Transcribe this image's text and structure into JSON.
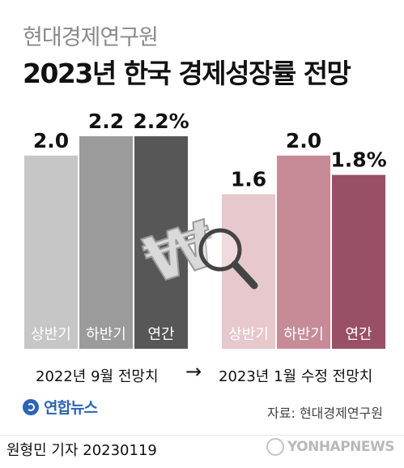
{
  "header": {
    "subtitle": "현대경제연구원",
    "title": "2023년 한국 경제성장률 전망"
  },
  "chart_data": {
    "type": "bar",
    "groups": [
      {
        "name": "2022년 9월 전망치",
        "categories": [
          "상반기",
          "하반기",
          "연간"
        ],
        "values": [
          2.0,
          2.2,
          2.2
        ],
        "value_labels": [
          "2.0",
          "2.2",
          "2.2%"
        ],
        "colors": [
          "#c6c6c6",
          "#9b9b9b",
          "#575757"
        ]
      },
      {
        "name": "2023년 1월 수정 전망치",
        "categories": [
          "상반기",
          "하반기",
          "연간"
        ],
        "values": [
          1.6,
          2.0,
          1.8
        ],
        "value_labels": [
          "1.6",
          "2.0",
          "1.8%"
        ],
        "colors": [
          "#e6c8cd",
          "#c78b98",
          "#9a5064"
        ]
      }
    ],
    "ylim": [
      0,
      2.2
    ],
    "grid": false,
    "legend": "none"
  },
  "footer": {
    "arrow": "→",
    "logo_text": "연합뉴스",
    "source": "자료: 현대경제연구원",
    "reporter": "원형민 기자  20230119",
    "watermark": "YONHAPNEWS"
  },
  "colors": {
    "label_white": "#ffffff",
    "magnifier": "#444444",
    "won_symbol": "#d9d9d9"
  }
}
